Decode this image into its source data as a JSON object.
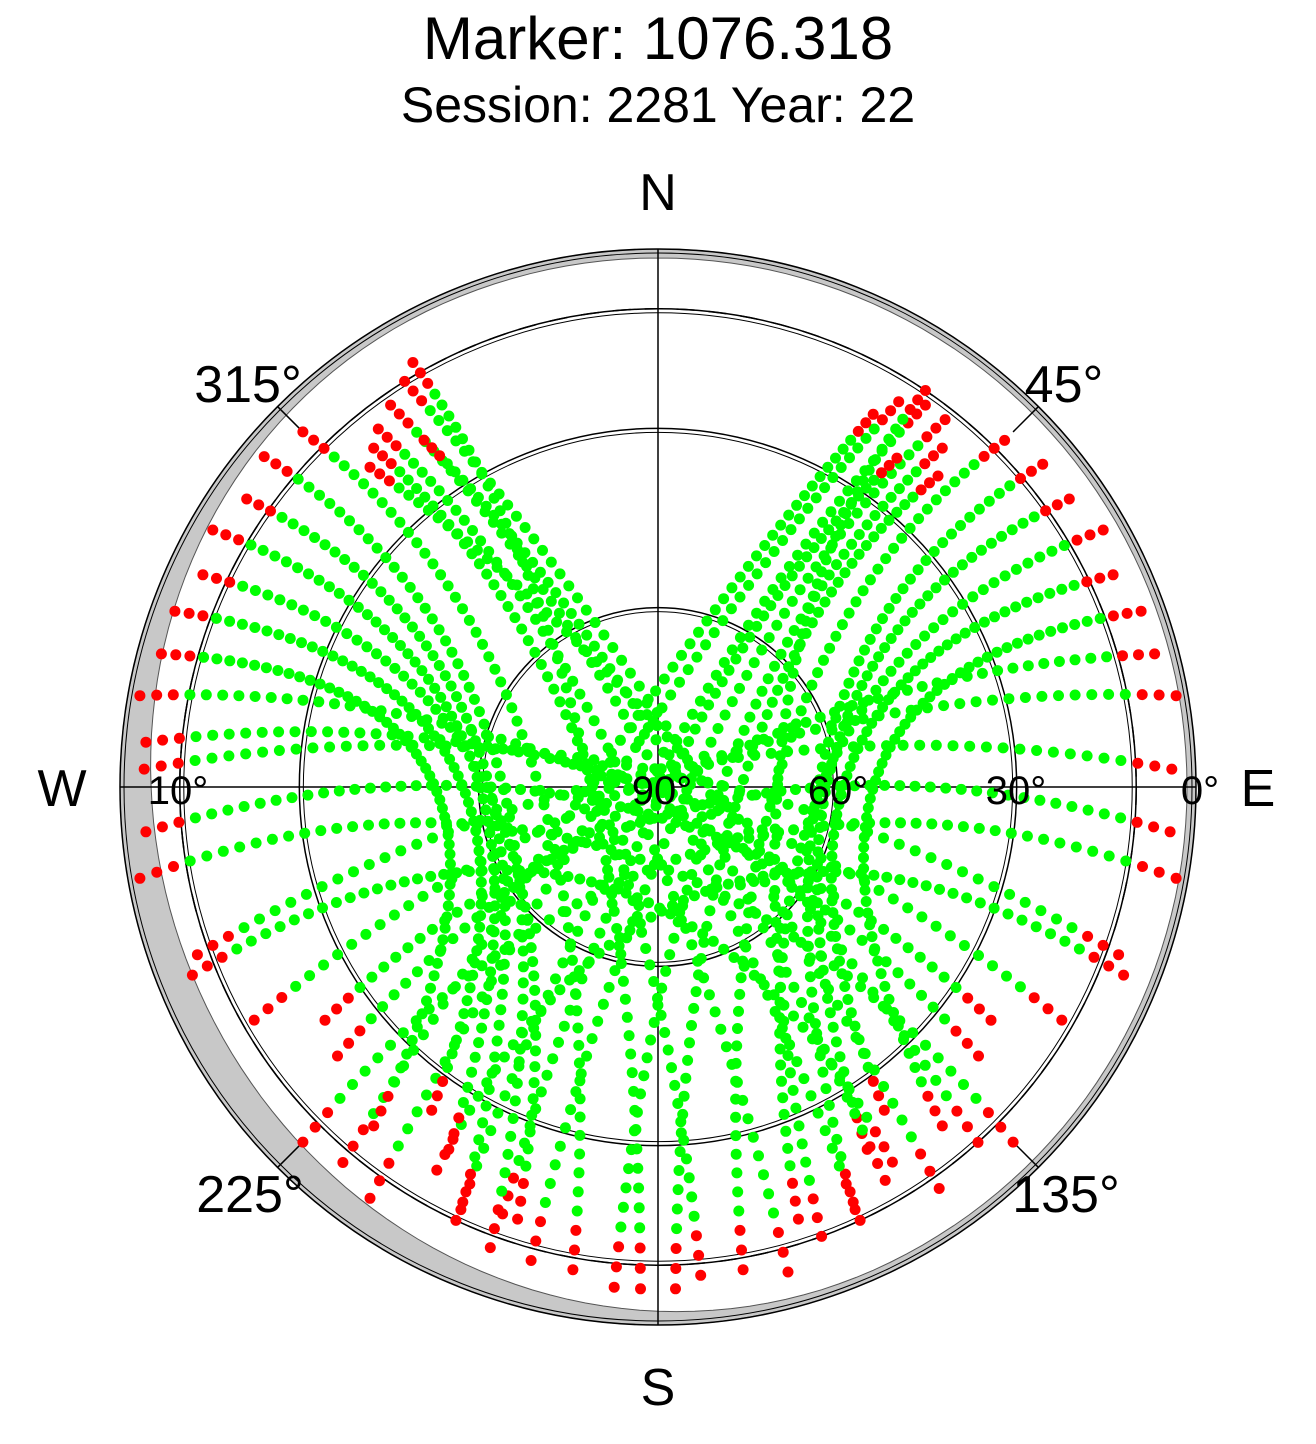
{
  "title": "Marker: 1076.318",
  "subtitle": "Session: 2281 Year: 22",
  "chart_data": {
    "type": "scatter",
    "title": "Marker: 1076.318",
    "subtitle": "Session: 2281 Year: 22",
    "projection": "polar-skyplot",
    "radial_axis": "elevation_deg",
    "radial_range": [
      0,
      90
    ],
    "elevation_ring_labels": [
      "10°",
      "90°",
      "60°",
      "30°",
      "0°"
    ],
    "elevation_rings": [
      0,
      10,
      30,
      60
    ],
    "cardinal_labels": [
      "N",
      "E",
      "S",
      "W"
    ],
    "azimuth_labels": [
      "45°",
      "135°",
      "225°",
      "315°"
    ],
    "colors": {
      "ok": "#00ff00",
      "flagged": "#ff0000",
      "horizon_mask": "#c8c8c8",
      "grid": "#000000"
    },
    "series": [
      {
        "color": "#00ff00",
        "note_visible": false
      },
      {
        "color": "#ff0000",
        "note_visible": false
      }
    ],
    "tracks": [
      {
        "start": [
          35,
          12
        ],
        "end": [
          205,
          10
        ]
      },
      {
        "start": [
          38,
          12
        ],
        "end": [
          195,
          8
        ]
      },
      {
        "start": [
          32,
          14
        ],
        "end": [
          215,
          6
        ]
      },
      {
        "start": [
          40,
          16
        ],
        "end": [
          185,
          6
        ]
      },
      {
        "start": [
          30,
          18
        ],
        "end": [
          220,
          8
        ]
      },
      {
        "start": [
          42,
          20
        ],
        "end": [
          178,
          6
        ]
      },
      {
        "start": [
          36,
          22
        ],
        "end": [
          200,
          14
        ]
      },
      {
        "start": [
          45,
          8
        ],
        "end": [
          170,
          8
        ]
      },
      {
        "start": [
          34,
          10
        ],
        "end": [
          160,
          10
        ]
      },
      {
        "start": [
          50,
          6
        ],
        "end": [
          155,
          12
        ]
      },
      {
        "start": [
          55,
          6
        ],
        "end": [
          150,
          20
        ]
      },
      {
        "start": [
          60,
          4
        ],
        "end": [
          162,
          14
        ]
      },
      {
        "start": [
          65,
          6
        ],
        "end": [
          145,
          24
        ]
      },
      {
        "start": [
          70,
          4
        ],
        "end": [
          140,
          16
        ]
      },
      {
        "start": [
          75,
          4
        ],
        "end": [
          230,
          20
        ]
      },
      {
        "start": [
          80,
          2
        ],
        "end": [
          240,
          12
        ]
      },
      {
        "start": [
          88,
          4
        ],
        "end": [
          250,
          8
        ]
      },
      {
        "start": [
          95,
          4
        ],
        "end": [
          235,
          22
        ]
      },
      {
        "start": [
          100,
          2
        ],
        "end": [
          225,
          6
        ]
      },
      {
        "start": [
          112,
          6
        ],
        "end": [
          210,
          16
        ]
      },
      {
        "start": [
          325,
          12
        ],
        "end": [
          155,
          10
        ]
      },
      {
        "start": [
          322,
          14
        ],
        "end": [
          165,
          6
        ]
      },
      {
        "start": [
          328,
          10
        ],
        "end": [
          145,
          8
        ]
      },
      {
        "start": [
          320,
          16
        ],
        "end": [
          175,
          8
        ]
      },
      {
        "start": [
          318,
          18
        ],
        "end": [
          138,
          10
        ]
      },
      {
        "start": [
          330,
          8
        ],
        "end": [
          182,
          6
        ]
      },
      {
        "start": [
          326,
          20
        ],
        "end": [
          150,
          14
        ]
      },
      {
        "start": [
          315,
          6
        ],
        "end": [
          190,
          8
        ]
      },
      {
        "start": [
          310,
          4
        ],
        "end": [
          200,
          8
        ]
      },
      {
        "start": [
          305,
          6
        ],
        "end": [
          205,
          12
        ]
      },
      {
        "start": [
          300,
          4
        ],
        "end": [
          210,
          20
        ]
      },
      {
        "start": [
          295,
          6
        ],
        "end": [
          198,
          14
        ]
      },
      {
        "start": [
          290,
          4
        ],
        "end": [
          215,
          24
        ]
      },
      {
        "start": [
          285,
          4
        ],
        "end": [
          220,
          16
        ]
      },
      {
        "start": [
          280,
          2
        ],
        "end": [
          130,
          20
        ]
      },
      {
        "start": [
          275,
          4
        ],
        "end": [
          120,
          12
        ]
      },
      {
        "start": [
          272,
          4
        ],
        "end": [
          110,
          8
        ]
      },
      {
        "start": [
          265,
          4
        ],
        "end": [
          125,
          22
        ]
      },
      {
        "start": [
          260,
          2
        ],
        "end": [
          135,
          6
        ]
      },
      {
        "start": [
          248,
          6
        ],
        "end": [
          148,
          16
        ]
      }
    ]
  }
}
